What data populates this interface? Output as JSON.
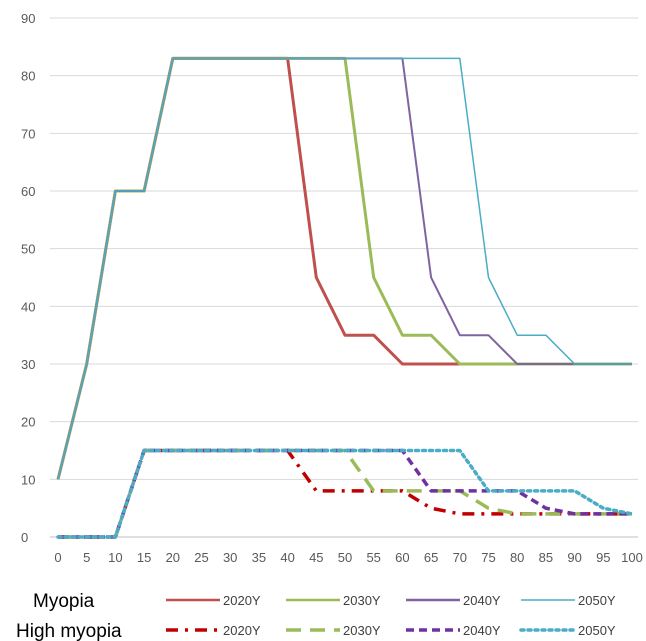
{
  "chart_data": {
    "type": "line",
    "title": "",
    "xlabel": "",
    "ylabel": "",
    "x": [
      0,
      5,
      10,
      15,
      20,
      25,
      30,
      35,
      40,
      45,
      50,
      55,
      60,
      65,
      70,
      75,
      80,
      85,
      90,
      95,
      100
    ],
    "xlim": [
      0,
      100
    ],
    "ylim": [
      0,
      90
    ],
    "yticks": [
      0,
      10,
      20,
      30,
      40,
      50,
      60,
      70,
      80,
      90
    ],
    "grid": "horizontal",
    "legend_position": "bottom",
    "groups": [
      {
        "name": "Myopia",
        "series": [
          {
            "name": "2020Y",
            "color": "#c0504d",
            "dash": "solid",
            "values": [
              10,
              30,
              60,
              60,
              83,
              83,
              83,
              83,
              83,
              45,
              35,
              35,
              30,
              30,
              30,
              30,
              30,
              30,
              30,
              30,
              30
            ]
          },
          {
            "name": "2030Y",
            "color": "#9bbb59",
            "dash": "solid",
            "values": [
              10,
              30,
              60,
              60,
              83,
              83,
              83,
              83,
              83,
              83,
              83,
              45,
              35,
              35,
              30,
              30,
              30,
              30,
              30,
              30,
              30
            ]
          },
          {
            "name": "2040Y",
            "color": "#8064a2",
            "dash": "solid",
            "values": [
              10,
              30,
              60,
              60,
              83,
              83,
              83,
              83,
              83,
              83,
              83,
              83,
              83,
              45,
              35,
              35,
              30,
              30,
              30,
              30,
              30
            ]
          },
          {
            "name": "2050Y",
            "color": "#4bacc6",
            "dash": "solid",
            "values": [
              10,
              30,
              60,
              60,
              83,
              83,
              83,
              83,
              83,
              83,
              83,
              83,
              83,
              83,
              83,
              45,
              35,
              35,
              30,
              30,
              30
            ]
          }
        ]
      },
      {
        "name": "High myopia",
        "series": [
          {
            "name": "2020Y",
            "color": "#c00000",
            "dash": "dashdot",
            "values": [
              0,
              0,
              0,
              15,
              15,
              15,
              15,
              15,
              15,
              8,
              8,
              8,
              8,
              5,
              4,
              4,
              4,
              4,
              4,
              4,
              4
            ]
          },
          {
            "name": "2030Y",
            "color": "#9bbb59",
            "dash": "longdash",
            "values": [
              0,
              0,
              0,
              15,
              15,
              15,
              15,
              15,
              15,
              15,
              15,
              8,
              8,
              8,
              8,
              5,
              4,
              4,
              4,
              4,
              4
            ]
          },
          {
            "name": "2040Y",
            "color": "#7030a0",
            "dash": "dash",
            "values": [
              0,
              0,
              0,
              15,
              15,
              15,
              15,
              15,
              15,
              15,
              15,
              15,
              15,
              8,
              8,
              8,
              8,
              5,
              4,
              4,
              4
            ]
          },
          {
            "name": "2050Y",
            "color": "#4bacc6",
            "dash": "dot",
            "values": [
              0,
              0,
              0,
              15,
              15,
              15,
              15,
              15,
              15,
              15,
              15,
              15,
              15,
              15,
              15,
              8,
              8,
              8,
              8,
              5,
              4
            ]
          }
        ]
      }
    ]
  }
}
